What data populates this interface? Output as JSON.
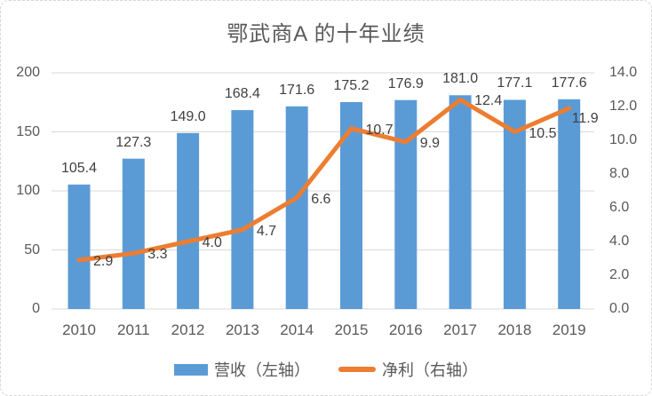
{
  "chart_data": {
    "type": "combo-bar-line",
    "title": "鄂武商A 的十年业绩",
    "categories": [
      "2010",
      "2011",
      "2012",
      "2013",
      "2014",
      "2015",
      "2016",
      "2017",
      "2018",
      "2019"
    ],
    "series": [
      {
        "name": "营收（左轴）",
        "type": "bar",
        "axis": "left",
        "color": "#5b9bd5",
        "values": [
          105.4,
          127.3,
          149.0,
          168.4,
          171.6,
          175.2,
          176.9,
          181.0,
          177.1,
          177.6
        ]
      },
      {
        "name": "净利（右轴）",
        "type": "line",
        "axis": "right",
        "color": "#ed7d31",
        "values": [
          2.9,
          3.3,
          4.0,
          4.7,
          6.6,
          10.7,
          9.9,
          12.4,
          10.5,
          11.9
        ]
      }
    ],
    "left_axis": {
      "min": 0,
      "max": 200,
      "step": 50,
      "ticks": [
        "0",
        "50",
        "100",
        "150",
        "200"
      ]
    },
    "right_axis": {
      "min": 0,
      "max": 14,
      "step": 2,
      "ticks": [
        "0.0",
        "2.0",
        "4.0",
        "6.0",
        "8.0",
        "10.0",
        "12.0",
        "14.0"
      ]
    },
    "grid": true,
    "data_labels": true,
    "legend_position": "bottom"
  },
  "colors": {
    "bar": "#5b9bd5",
    "line": "#ed7d31",
    "grid": "#d9d9d9",
    "axis_text": "#595959",
    "data_label_text": "#404040",
    "title_text": "#595959",
    "border": "#d6d6d6",
    "background": "#ffffff"
  }
}
